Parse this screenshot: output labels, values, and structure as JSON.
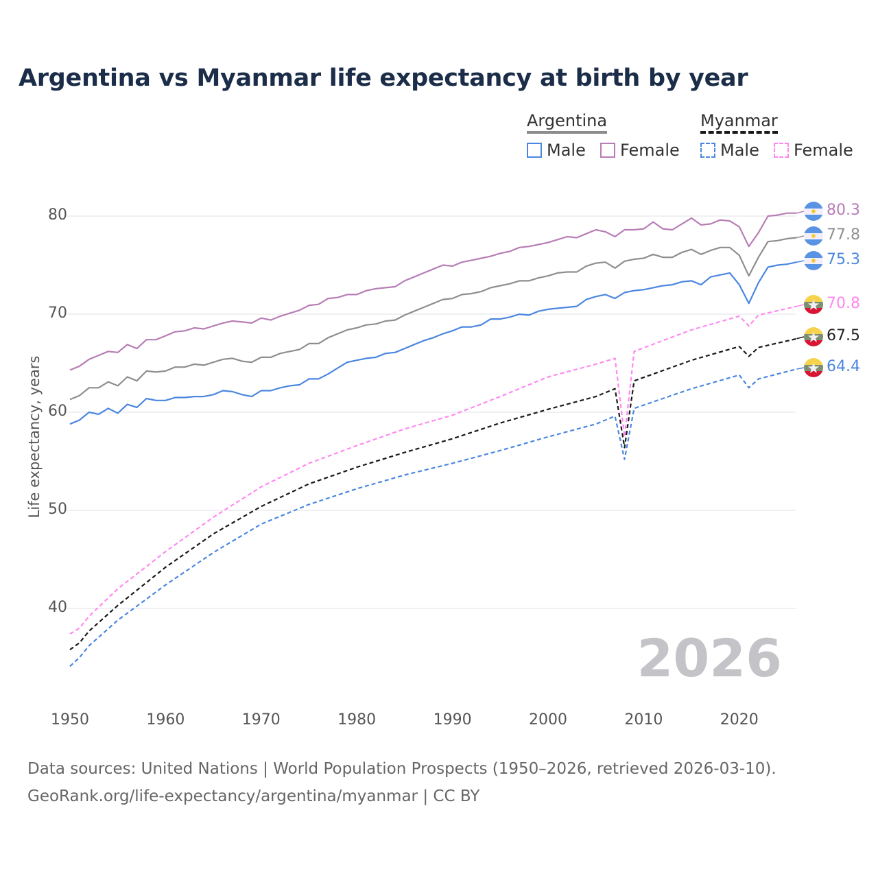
{
  "title": "Argentina vs Myanmar life expectancy at birth by year",
  "legend": {
    "groups": [
      {
        "label": "Argentina",
        "style": "solid",
        "color": "#8c8c8c"
      },
      {
        "label": "Myanmar",
        "style": "dashed",
        "color": "#1a1a1a"
      }
    ],
    "items": [
      {
        "label": "Male",
        "group": "Argentina",
        "color": "#4a86e0",
        "style": "solid"
      },
      {
        "label": "Female",
        "group": "Argentina",
        "color": "#b77db5",
        "style": "solid"
      },
      {
        "label": "Male",
        "group": "Myanmar",
        "color": "#4a86e0",
        "style": "dashed"
      },
      {
        "label": "Female",
        "group": "Myanmar",
        "color": "#ff88f0",
        "style": "dashed"
      }
    ]
  },
  "current_year_label": "2026",
  "footer": {
    "line1": "Data sources: United Nations | World Population Prospects (1950–2026, retrieved 2026-03-10).",
    "line2": "GeoRank.org/life-expectancy/argentina/myanmar | CC BY"
  },
  "chart_data": {
    "type": "line",
    "title": "Argentina vs Myanmar life expectancy at birth by year",
    "xlabel": "",
    "ylabel": "Life expectancy, years",
    "xlim": [
      1950,
      2026
    ],
    "ylim": [
      33,
      82
    ],
    "xticks": [
      "1950",
      "1960",
      "1970",
      "1980",
      "1990",
      "2000",
      "2010",
      "2020"
    ],
    "yticks": [
      "80",
      "70",
      "60",
      "50",
      "40"
    ],
    "grid": true,
    "series": [
      {
        "name": "Argentina Female",
        "country": "argentina",
        "color": "#b77db5",
        "dashed": false,
        "end_label": "80.3",
        "start_year": 1950,
        "values": [
          64.3,
          64.7,
          65.4,
          65.8,
          66.2,
          66.1,
          66.9,
          66.5,
          67.4,
          67.4,
          67.8,
          68.2,
          68.3,
          68.6,
          68.5,
          68.8,
          69.1,
          69.3,
          69.2,
          69.1,
          69.6,
          69.4,
          69.8,
          70.1,
          70.4,
          70.9,
          71.0,
          71.6,
          71.7,
          72.0,
          72.0,
          72.4,
          72.6,
          72.7,
          72.8,
          73.4,
          73.8,
          74.2,
          74.6,
          75.0,
          74.9,
          75.3,
          75.5,
          75.7,
          75.9,
          76.2,
          76.4,
          76.8,
          76.9,
          77.1,
          77.3,
          77.6,
          77.9,
          77.8,
          78.2,
          78.6,
          78.4,
          77.9,
          78.6,
          78.6,
          78.7,
          79.4,
          78.7,
          78.6,
          79.2,
          79.8,
          79.1,
          79.2,
          79.6,
          79.5,
          78.9,
          76.9,
          78.3,
          80.0,
          80.1,
          80.3,
          80.3
        ]
      },
      {
        "name": "Argentina Total",
        "country": "argentina",
        "color": "#8e8e8e",
        "dashed": false,
        "end_label": "77.8",
        "start_year": 1950,
        "values": [
          61.3,
          61.7,
          62.5,
          62.5,
          63.1,
          62.7,
          63.6,
          63.2,
          64.2,
          64.1,
          64.2,
          64.6,
          64.6,
          64.9,
          64.8,
          65.1,
          65.4,
          65.5,
          65.2,
          65.1,
          65.6,
          65.6,
          66.0,
          66.2,
          66.4,
          67.0,
          67.0,
          67.6,
          68.0,
          68.4,
          68.6,
          68.9,
          69.0,
          69.3,
          69.4,
          69.9,
          70.3,
          70.7,
          71.1,
          71.5,
          71.6,
          72.0,
          72.1,
          72.3,
          72.7,
          72.9,
          73.1,
          73.4,
          73.4,
          73.7,
          73.9,
          74.2,
          74.3,
          74.3,
          74.9,
          75.2,
          75.3,
          74.7,
          75.4,
          75.6,
          75.7,
          76.1,
          75.8,
          75.8,
          76.3,
          76.6,
          76.1,
          76.5,
          76.8,
          76.8,
          76.0,
          73.9,
          75.8,
          77.4,
          77.5,
          77.7,
          77.8
        ]
      },
      {
        "name": "Argentina Male",
        "country": "argentina",
        "color": "#4a86e0",
        "dashed": false,
        "end_label": "75.3",
        "start_year": 1950,
        "values": [
          58.8,
          59.2,
          60.0,
          59.8,
          60.4,
          59.9,
          60.8,
          60.5,
          61.4,
          61.2,
          61.2,
          61.5,
          61.5,
          61.6,
          61.6,
          61.8,
          62.2,
          62.1,
          61.8,
          61.6,
          62.2,
          62.2,
          62.5,
          62.7,
          62.8,
          63.4,
          63.4,
          63.9,
          64.5,
          65.1,
          65.3,
          65.5,
          65.6,
          66.0,
          66.1,
          66.5,
          66.9,
          67.3,
          67.6,
          68.0,
          68.3,
          68.7,
          68.7,
          68.9,
          69.5,
          69.5,
          69.7,
          70.0,
          69.9,
          70.3,
          70.5,
          70.6,
          70.7,
          70.8,
          71.5,
          71.8,
          72.0,
          71.6,
          72.2,
          72.4,
          72.5,
          72.7,
          72.9,
          73.0,
          73.3,
          73.4,
          73.0,
          73.8,
          74.0,
          74.2,
          73.0,
          71.1,
          73.2,
          74.8,
          75.0,
          75.1,
          75.3
        ]
      },
      {
        "name": "Myanmar Female",
        "country": "myanmar",
        "color": "#ff88f0",
        "dashed": true,
        "end_label": "70.8",
        "points": [
          [
            1950,
            37.4
          ],
          [
            1951,
            38.0
          ],
          [
            1952,
            39.2
          ],
          [
            1955,
            42.0
          ],
          [
            1960,
            45.8
          ],
          [
            1965,
            49.3
          ],
          [
            1970,
            52.4
          ],
          [
            1975,
            54.8
          ],
          [
            1980,
            56.6
          ],
          [
            1985,
            58.3
          ],
          [
            1990,
            59.7
          ],
          [
            1995,
            61.6
          ],
          [
            2000,
            63.6
          ],
          [
            2005,
            64.9
          ],
          [
            2007,
            65.5
          ],
          [
            2008,
            57.5
          ],
          [
            2009,
            66.2
          ],
          [
            2015,
            68.4
          ],
          [
            2020,
            69.8
          ],
          [
            2021,
            68.8
          ],
          [
            2022,
            69.9
          ],
          [
            2026,
            70.8
          ]
        ]
      },
      {
        "name": "Myanmar Total",
        "country": "myanmar",
        "color": "#1a1a1a",
        "dashed": true,
        "end_label": "67.5",
        "points": [
          [
            1950,
            35.8
          ],
          [
            1951,
            36.5
          ],
          [
            1952,
            37.7
          ],
          [
            1955,
            40.3
          ],
          [
            1960,
            44.2
          ],
          [
            1965,
            47.6
          ],
          [
            1970,
            50.4
          ],
          [
            1975,
            52.7
          ],
          [
            1980,
            54.4
          ],
          [
            1985,
            55.9
          ],
          [
            1990,
            57.3
          ],
          [
            1995,
            58.9
          ],
          [
            2000,
            60.3
          ],
          [
            2005,
            61.6
          ],
          [
            2007,
            62.4
          ],
          [
            2008,
            56.4
          ],
          [
            2009,
            63.2
          ],
          [
            2015,
            65.3
          ],
          [
            2020,
            66.7
          ],
          [
            2021,
            65.7
          ],
          [
            2022,
            66.6
          ],
          [
            2026,
            67.5
          ]
        ]
      },
      {
        "name": "Myanmar Male",
        "country": "myanmar",
        "color": "#4a86e0",
        "dashed": true,
        "end_label": "64.4",
        "points": [
          [
            1950,
            34.1
          ],
          [
            1951,
            35.0
          ],
          [
            1952,
            36.2
          ],
          [
            1955,
            38.8
          ],
          [
            1960,
            42.4
          ],
          [
            1965,
            45.7
          ],
          [
            1970,
            48.6
          ],
          [
            1975,
            50.6
          ],
          [
            1980,
            52.2
          ],
          [
            1985,
            53.6
          ],
          [
            1990,
            54.8
          ],
          [
            1995,
            56.1
          ],
          [
            2000,
            57.5
          ],
          [
            2005,
            58.8
          ],
          [
            2007,
            59.6
          ],
          [
            2008,
            55.2
          ],
          [
            2009,
            60.4
          ],
          [
            2015,
            62.4
          ],
          [
            2020,
            63.8
          ],
          [
            2021,
            62.5
          ],
          [
            2022,
            63.4
          ],
          [
            2026,
            64.4
          ]
        ]
      }
    ]
  }
}
